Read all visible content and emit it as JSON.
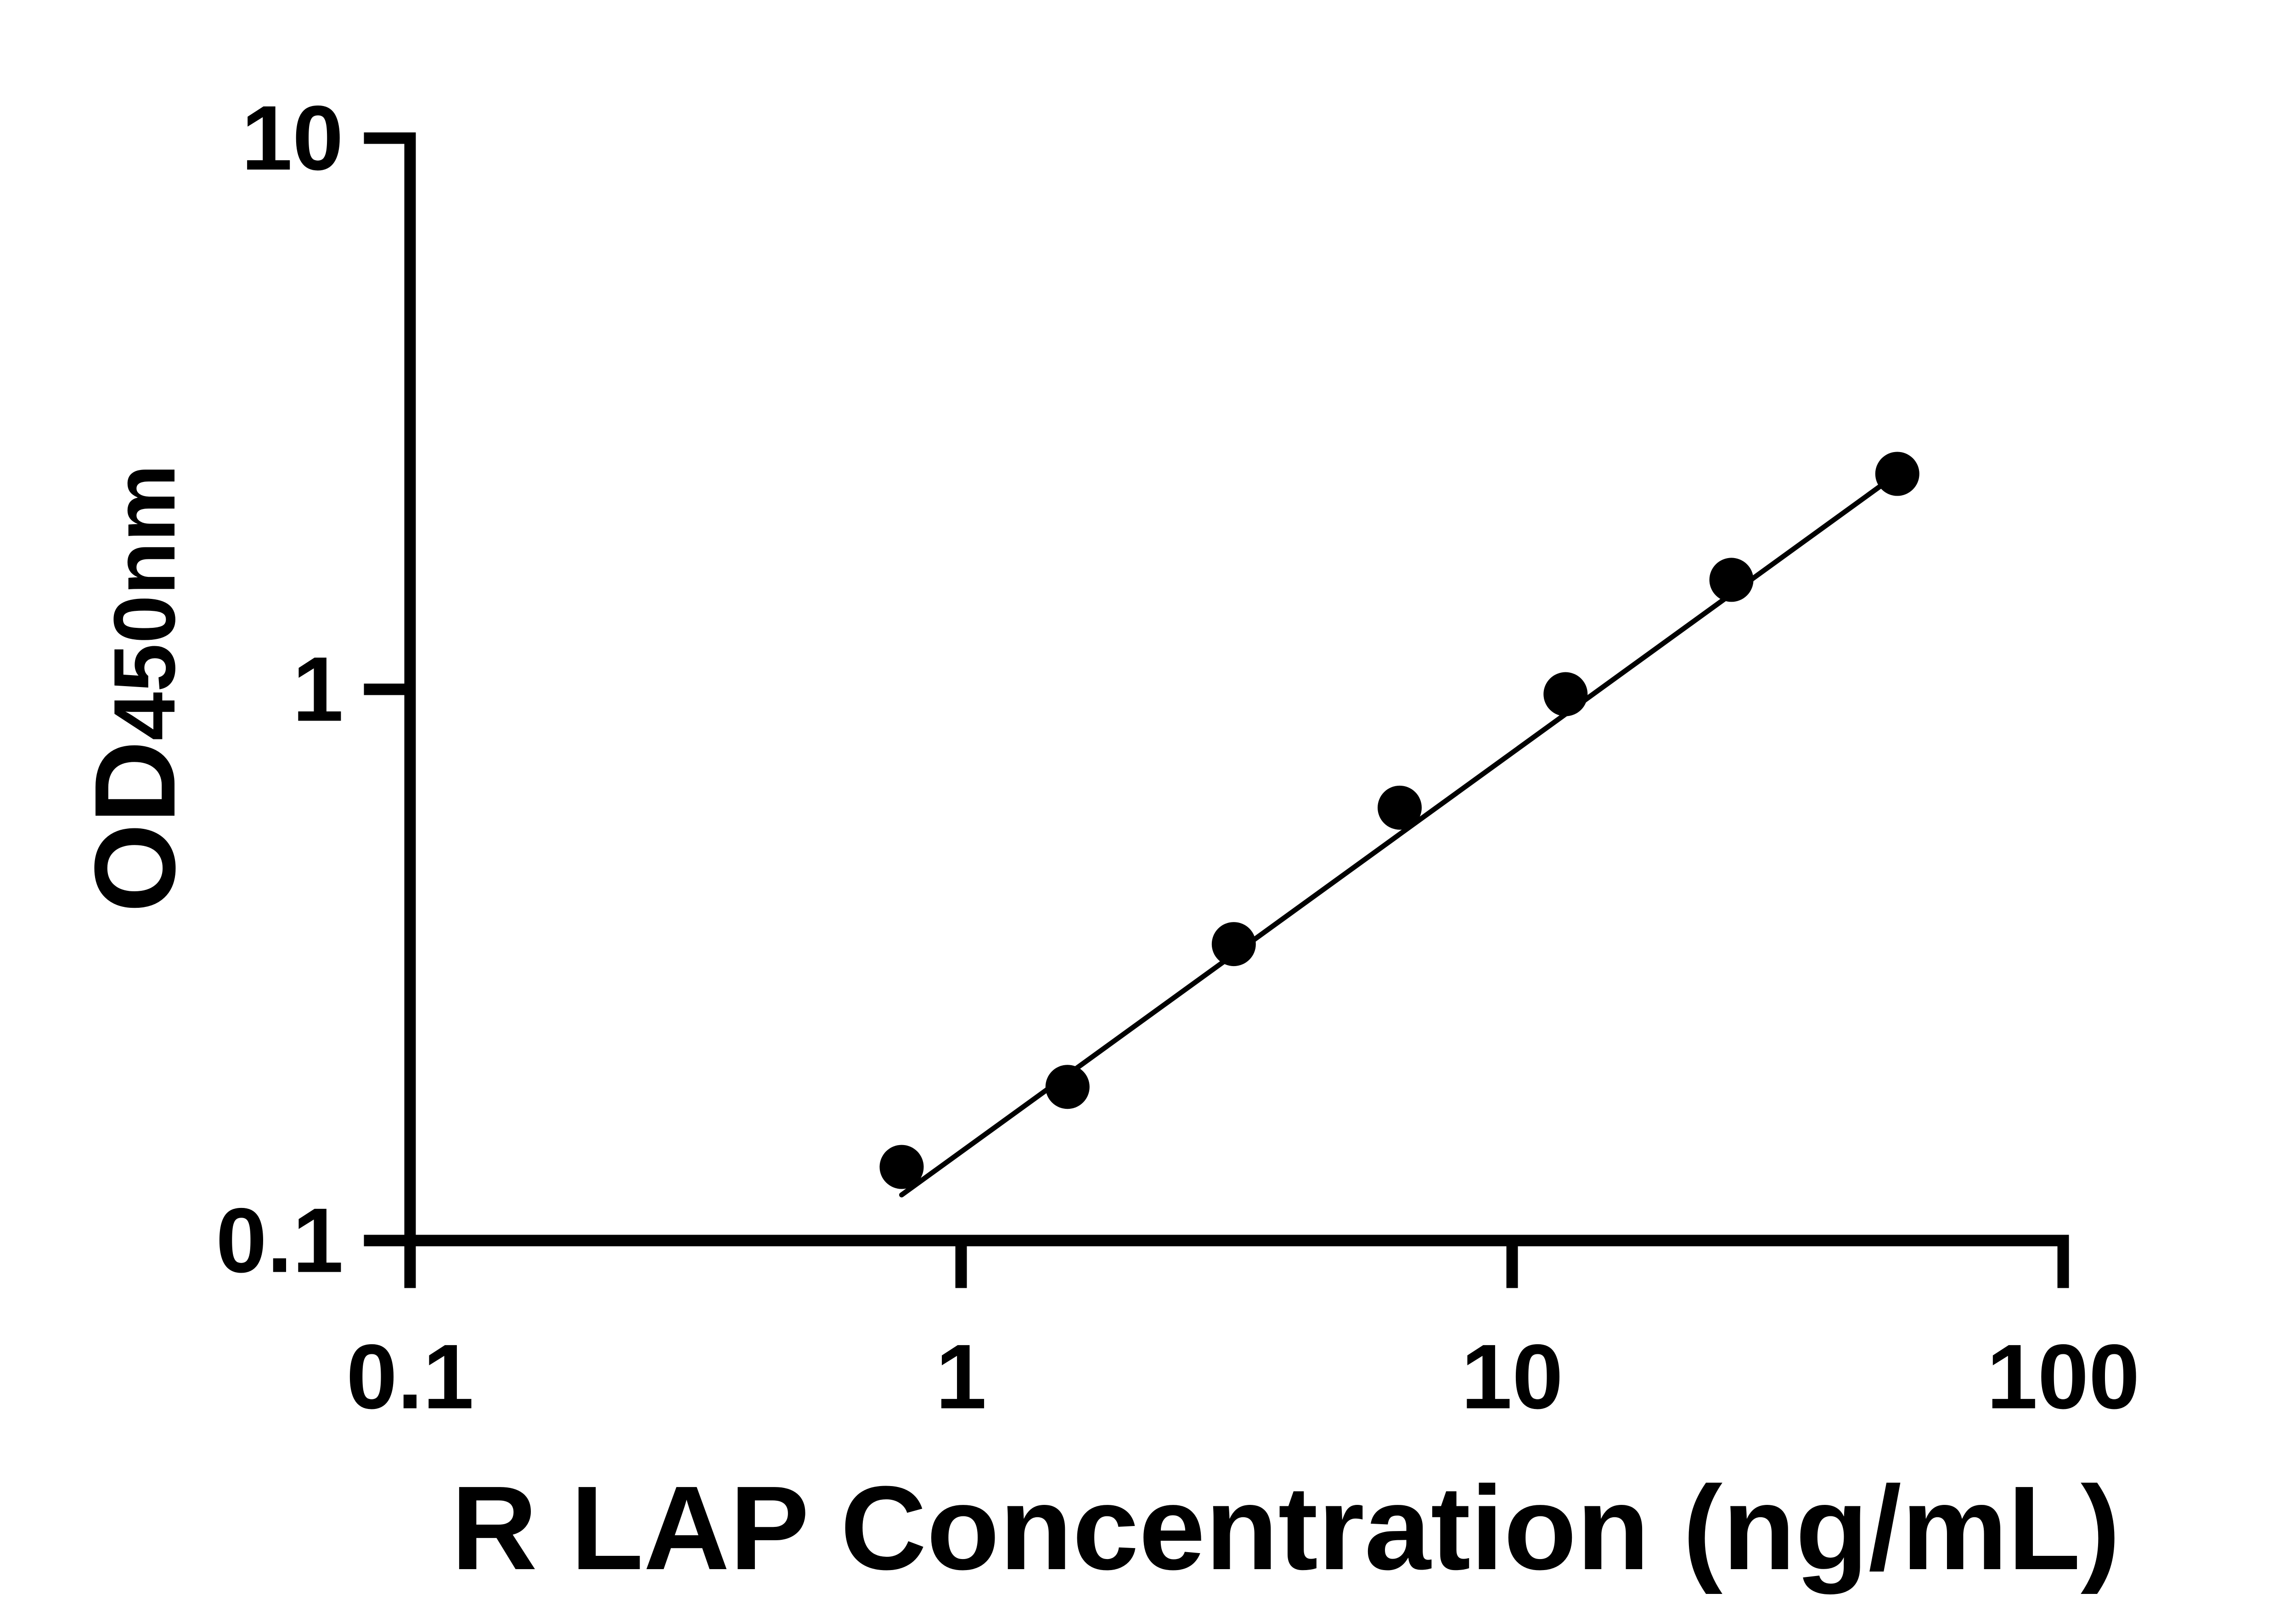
{
  "figure": {
    "background": "#ffffff",
    "ink_color": "#000000"
  },
  "chart_data": {
    "type": "scatter",
    "subtype": "log-log standard curve with fitted line",
    "xlabel": "R LAP Concentration (ng/mL)",
    "ylabel_main": "OD",
    "ylabel_sub": "450nm",
    "x_scale": "log",
    "y_scale": "log",
    "xlim": [
      0.1,
      100
    ],
    "ylim": [
      0.1,
      10
    ],
    "grid": "off",
    "legend": "none",
    "x_ticks": [
      {
        "value": 0.1,
        "label": "0.1"
      },
      {
        "value": 1,
        "label": "1"
      },
      {
        "value": 10,
        "label": "10"
      },
      {
        "value": 100,
        "label": "100"
      }
    ],
    "y_ticks": [
      {
        "value": 0.1,
        "label": "0.1"
      },
      {
        "value": 1,
        "label": "1"
      },
      {
        "value": 10,
        "label": "10"
      }
    ],
    "series": [
      {
        "name": "standard-curve",
        "marker": "filled-circle",
        "color": "#000000",
        "points": [
          {
            "x": 0.78,
            "y": 0.136
          },
          {
            "x": 1.56,
            "y": 0.19
          },
          {
            "x": 3.125,
            "y": 0.345
          },
          {
            "x": 6.25,
            "y": 0.61
          },
          {
            "x": 12.5,
            "y": 0.98
          },
          {
            "x": 25,
            "y": 1.58
          },
          {
            "x": 50,
            "y": 2.46
          }
        ]
      }
    ],
    "trendline": {
      "x1": 0.78,
      "y1": 0.121,
      "x2": 50,
      "y2": 2.46
    }
  }
}
